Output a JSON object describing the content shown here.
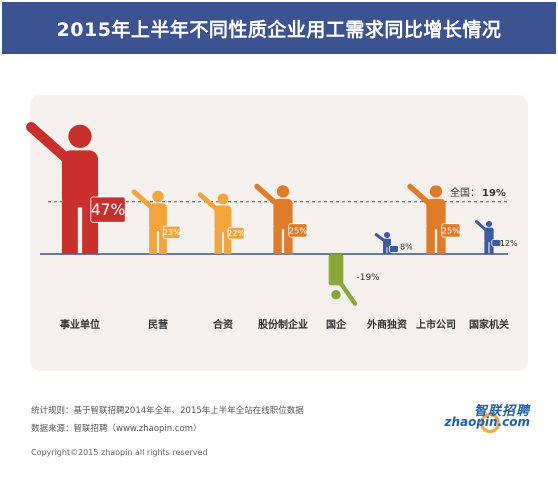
{
  "header": {
    "title": "2015年上半年不同性质企业用工需求同比增长情况"
  },
  "chart_data": {
    "type": "bar",
    "title": "2015年上半年不同性质企业用工需求同比增长情况",
    "categories": [
      "事业单位",
      "民营",
      "合资",
      "股份制企业",
      "国企",
      "外商独资",
      "上市公司",
      "国家机关"
    ],
    "values": [
      47,
      23,
      22,
      25,
      -19,
      8,
      25,
      12
    ],
    "value_labels": [
      "47%",
      "23%",
      "22%",
      "25%",
      "-19%",
      "8%",
      "25%",
      "12%"
    ],
    "reference_line": {
      "label": "全国：",
      "value_label": "19%",
      "value": 19
    },
    "colors": [
      "#c9302c",
      "#f3a43b",
      "#f3a43b",
      "#e07b27",
      "#89a838",
      "#3a5ba0",
      "#e07b27",
      "#3a5ba0"
    ],
    "axis_color": "#3b5391",
    "icon": "person-raising-hand-with-briefcase-icon"
  },
  "footer": {
    "rule": "统计规则：基于智联招聘2014年全年、2015年上半年全站在线职位数据",
    "source": "数据来源：智联招聘（www.zhaopin.com）",
    "copyright": "Copyright©2015 zhaopin all rights reserved",
    "logo_cn": "智联招聘",
    "logo_en": "zhaopin.com"
  }
}
